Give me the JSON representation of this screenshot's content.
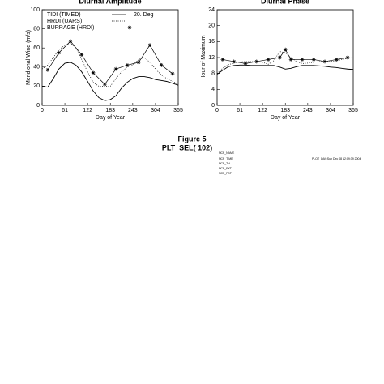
{
  "chart_data": [
    {
      "type": "line",
      "title": "Diurnal Amplitude",
      "xlabel": "Day of Year",
      "ylabel": "Meridional Wind (m/s)",
      "xlim": [
        0,
        365
      ],
      "xticks": [
        0,
        61,
        122,
        183,
        243,
        304,
        365
      ],
      "ylim": [
        0,
        100
      ],
      "yticks": [
        0,
        20,
        40,
        60,
        80,
        100
      ],
      "annotation": "20. Deg",
      "x": [
        0,
        15,
        30,
        45,
        61,
        76,
        91,
        106,
        122,
        137,
        152,
        168,
        183,
        198,
        213,
        228,
        243,
        259,
        274,
        289,
        304,
        319,
        334,
        350,
        365
      ],
      "series": [
        {
          "name": "TIDI (TIMED)",
          "color": "#000000",
          "style": "solid",
          "values": [
            20,
            19,
            28,
            38,
            44,
            45,
            42,
            35,
            25,
            15,
            8,
            5,
            6,
            10,
            18,
            24,
            28,
            30,
            30,
            29,
            27,
            26,
            25,
            23,
            21
          ]
        },
        {
          "name": "HRDI (UARS)",
          "color": "#000000",
          "style": "dotted",
          "values": [
            38,
            42,
            50,
            58,
            63,
            65,
            60,
            48,
            35,
            24,
            20,
            20,
            20,
            28,
            35,
            40,
            42,
            48,
            50,
            45,
            38,
            32,
            28,
            25,
            22
          ]
        },
        {
          "name": "BURRAGE (HRDI)",
          "color": "#000000",
          "style": "asterisk",
          "x": [
            15,
            45,
            76,
            106,
            137,
            168,
            198,
            228,
            259,
            289,
            320,
            350
          ],
          "values": [
            37,
            55,
            67,
            53,
            34,
            22,
            38,
            42,
            45,
            63,
            42,
            33
          ]
        }
      ]
    },
    {
      "type": "line",
      "title": "Diurnal Phase",
      "xlabel": "Day of Year",
      "ylabel": "Hour of Maximum",
      "xlim": [
        0,
        365
      ],
      "xticks": [
        0,
        61,
        122,
        183,
        243,
        304,
        365
      ],
      "ylim": [
        0,
        24
      ],
      "yticks": [
        0,
        4,
        8,
        12,
        16,
        20,
        24
      ],
      "x": [
        0,
        15,
        30,
        45,
        61,
        76,
        91,
        106,
        122,
        137,
        152,
        168,
        183,
        198,
        213,
        228,
        243,
        259,
        274,
        289,
        304,
        319,
        334,
        350,
        365
      ],
      "series": [
        {
          "color": "#000000",
          "style": "solid",
          "values": [
            7.8,
            8.8,
            9.7,
            10,
            10.1,
            10.1,
            10,
            10,
            10,
            10,
            10,
            9.6,
            9.1,
            9.3,
            9.7,
            10,
            10,
            10,
            9.9,
            9.8,
            9.6,
            9.5,
            9.3,
            9.1,
            9
          ]
        },
        {
          "color": "#000000",
          "style": "dotted",
          "values": [
            8,
            9.3,
            10.2,
            10.6,
            10.9,
            11,
            11,
            11,
            10.8,
            10.3,
            11.2,
            13.5,
            13.2,
            12,
            11,
            10.5,
            10.6,
            10.8,
            11,
            11,
            11,
            11.2,
            11.5,
            11.8,
            12
          ]
        },
        {
          "color": "#000000",
          "style": "asterisk",
          "x": [
            15,
            45,
            76,
            106,
            137,
            168,
            183,
            198,
            228,
            259,
            289,
            320,
            350
          ],
          "values": [
            11.5,
            11,
            10.5,
            11,
            11.5,
            12,
            14,
            11.5,
            11.5,
            11.5,
            11,
            11.5,
            12
          ]
        }
      ]
    }
  ],
  "footer": {
    "figure": "Figure 5",
    "label": "PLT_SEL( 102)",
    "info": [
      "NCF_NAME",
      "NCF_TIME",
      "NCF_TH",
      "NCF_EXT",
      "NCF_FDT",
      "PLOT_DAY:Sun Dec 08 12:09:39 2004"
    ]
  }
}
